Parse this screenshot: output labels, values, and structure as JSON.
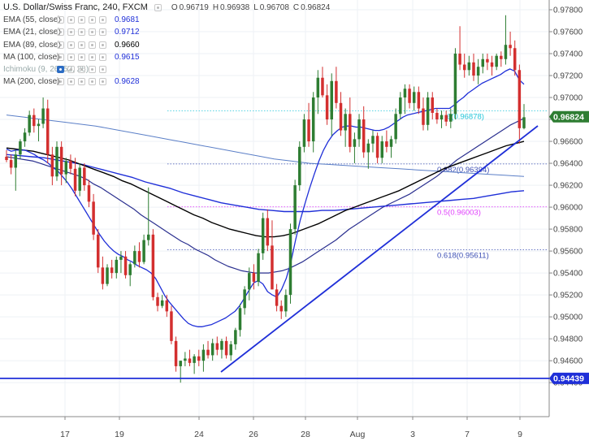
{
  "header": {
    "title": "U.S. Dollar/Swiss Franc, 240, FXCM",
    "ohlc": [
      {
        "k": "O",
        "v": "0.96719"
      },
      {
        "k": "H",
        "v": "0.96938"
      },
      {
        "k": "L",
        "v": "0.96708"
      },
      {
        "k": "C",
        "v": "0.96824"
      }
    ]
  },
  "indicators": [
    {
      "label": "EMA (55, close)",
      "value": "0.9681",
      "color": "#1f2fd8",
      "dim": false,
      "icon": "eye-icon"
    },
    {
      "label": "EMA (21, close)",
      "value": "0.9712",
      "color": "#1f2fd8",
      "dim": false,
      "icon": "eye-icon"
    },
    {
      "label": "EMA (89, close)",
      "value": "0.9660",
      "color": "#000000",
      "dim": false,
      "icon": "eye-icon"
    },
    {
      "label": "MA (100, close)",
      "value": "0.9615",
      "color": "#1f2fd8",
      "dim": false,
      "icon": "eye-icon"
    },
    {
      "label": "Ichimoku (9, 26, 52, 26)",
      "value": "",
      "color": "#999999",
      "dim": true,
      "icon": "eye-toggle-icon"
    },
    {
      "label": "MA (200, close)",
      "value": "0.9628",
      "color": "#1f2fd8",
      "dim": false,
      "icon": "eye-icon"
    }
  ],
  "colors": {
    "up": "#2e7d32",
    "down": "#d32f2f",
    "trendline": "#1f2fd8",
    "support": "#1f2fd8",
    "fib": "#3f51b5",
    "price_badge": "#2e7d32",
    "support_badge": "#1f2fd8"
  },
  "chart_data": {
    "type": "candlestick",
    "x_labels": [
      "17",
      "19",
      "24",
      "26",
      "28",
      "Aug",
      "3",
      "7",
      "9"
    ],
    "y_ticks": [
      "0.97800",
      "0.97600",
      "0.97400",
      "0.97200",
      "0.97000",
      "0.96800",
      "0.96600",
      "0.96400",
      "0.96200",
      "0.96000",
      "0.95800",
      "0.95600",
      "0.95400",
      "0.95200",
      "0.95000",
      "0.94800",
      "0.94600",
      "0.94400"
    ],
    "ylim": [
      0.9428,
      0.9789
    ],
    "current_price": "0.96824",
    "support_price": "0.94439",
    "fib_levels": [
      {
        "label": "6(0.96878)",
        "value": 0.96878,
        "color": "#26c6da"
      },
      {
        "label": "0.382(0.96394)",
        "value": 0.96394,
        "color": "#3f51b5"
      },
      {
        "label": "0.5(0.96003)",
        "value": 0.96003,
        "color": "#e040fb"
      },
      {
        "label": "0.618(0.95611)",
        "value": 0.95611,
        "color": "#3f51b5"
      }
    ],
    "candles": [
      [
        0.9646,
        0.9652,
        0.9641,
        0.9643
      ],
      [
        0.9643,
        0.9648,
        0.963,
        0.9636
      ],
      [
        0.9636,
        0.9652,
        0.9615,
        0.9648
      ],
      [
        0.9648,
        0.9662,
        0.9644,
        0.966
      ],
      [
        0.966,
        0.9672,
        0.9655,
        0.9668
      ],
      [
        0.9668,
        0.9688,
        0.9665,
        0.9684
      ],
      [
        0.9684,
        0.969,
        0.9668,
        0.9674
      ],
      [
        0.9674,
        0.968,
        0.966,
        0.9676
      ],
      [
        0.9676,
        0.97,
        0.9672,
        0.969
      ],
      [
        0.969,
        0.9698,
        0.964,
        0.9648
      ],
      [
        0.9648,
        0.9655,
        0.962,
        0.9628
      ],
      [
        0.9628,
        0.966,
        0.9624,
        0.9655
      ],
      [
        0.9655,
        0.966,
        0.962,
        0.963
      ],
      [
        0.963,
        0.9645,
        0.9622,
        0.9642
      ],
      [
        0.9642,
        0.9648,
        0.963,
        0.9635
      ],
      [
        0.9635,
        0.9645,
        0.961,
        0.9615
      ],
      [
        0.9615,
        0.964,
        0.961,
        0.9636
      ],
      [
        0.9636,
        0.964,
        0.9615,
        0.962
      ],
      [
        0.962,
        0.9625,
        0.96,
        0.9605
      ],
      [
        0.9605,
        0.9612,
        0.957,
        0.9575
      ],
      [
        0.9575,
        0.958,
        0.954,
        0.9545
      ],
      [
        0.9545,
        0.9555,
        0.9525,
        0.953
      ],
      [
        0.953,
        0.9548,
        0.9528,
        0.9545
      ],
      [
        0.9545,
        0.9552,
        0.9535,
        0.954
      ],
      [
        0.954,
        0.9555,
        0.9535,
        0.9552
      ],
      [
        0.9552,
        0.956,
        0.954,
        0.9555
      ],
      [
        0.9555,
        0.956,
        0.9535,
        0.9538
      ],
      [
        0.9538,
        0.955,
        0.9528,
        0.9548
      ],
      [
        0.9548,
        0.9565,
        0.9545,
        0.956
      ],
      [
        0.956,
        0.9568,
        0.9545,
        0.955
      ],
      [
        0.955,
        0.9575,
        0.9548,
        0.957
      ],
      [
        0.957,
        0.9618,
        0.9565,
        0.9575
      ],
      [
        0.9575,
        0.958,
        0.9515,
        0.9518
      ],
      [
        0.9518,
        0.9522,
        0.9505,
        0.951
      ],
      [
        0.951,
        0.952,
        0.9508,
        0.9515
      ],
      [
        0.9515,
        0.952,
        0.95,
        0.9505
      ],
      [
        0.9505,
        0.951,
        0.9475,
        0.9478
      ],
      [
        0.9478,
        0.9482,
        0.945,
        0.9455
      ],
      [
        0.9455,
        0.946,
        0.944,
        0.946
      ],
      [
        0.946,
        0.9468,
        0.9455,
        0.9462
      ],
      [
        0.9462,
        0.947,
        0.9455,
        0.9458
      ],
      [
        0.9458,
        0.9466,
        0.9448,
        0.9464
      ],
      [
        0.9464,
        0.947,
        0.9455,
        0.946
      ],
      [
        0.946,
        0.9475,
        0.945,
        0.947
      ],
      [
        0.947,
        0.9478,
        0.9462,
        0.9465
      ],
      [
        0.9465,
        0.948,
        0.946,
        0.9476
      ],
      [
        0.9476,
        0.9482,
        0.9465,
        0.947
      ],
      [
        0.947,
        0.948,
        0.9462,
        0.9478
      ],
      [
        0.9478,
        0.9482,
        0.9462,
        0.9465
      ],
      [
        0.9465,
        0.9478,
        0.946,
        0.9475
      ],
      [
        0.9475,
        0.949,
        0.947,
        0.9488
      ],
      [
        0.9488,
        0.9512,
        0.9482,
        0.9508
      ],
      [
        0.9508,
        0.9528,
        0.9502,
        0.9525
      ],
      [
        0.9525,
        0.9545,
        0.9515,
        0.954
      ],
      [
        0.954,
        0.9548,
        0.9525,
        0.9532
      ],
      [
        0.9532,
        0.9562,
        0.9528,
        0.9558
      ],
      [
        0.9558,
        0.9595,
        0.9552,
        0.959
      ],
      [
        0.959,
        0.9598,
        0.956,
        0.9565
      ],
      [
        0.9565,
        0.9588,
        0.9525,
        0.9525
      ],
      [
        0.9525,
        0.953,
        0.9505,
        0.951
      ],
      [
        0.951,
        0.9515,
        0.9498,
        0.9505
      ],
      [
        0.9505,
        0.9525,
        0.95,
        0.952
      ],
      [
        0.952,
        0.9585,
        0.9512,
        0.958
      ],
      [
        0.958,
        0.9625,
        0.9575,
        0.962
      ],
      [
        0.962,
        0.966,
        0.9615,
        0.9655
      ],
      [
        0.9655,
        0.9685,
        0.965,
        0.968
      ],
      [
        0.968,
        0.9695,
        0.9655,
        0.966
      ],
      [
        0.966,
        0.9705,
        0.965,
        0.97
      ],
      [
        0.97,
        0.9725,
        0.9685,
        0.9718
      ],
      [
        0.9718,
        0.9728,
        0.97,
        0.9702
      ],
      [
        0.9702,
        0.9712,
        0.9675,
        0.968
      ],
      [
        0.968,
        0.9722,
        0.9665,
        0.9715
      ],
      [
        0.9715,
        0.9728,
        0.969,
        0.9695
      ],
      [
        0.9695,
        0.9705,
        0.9665,
        0.967
      ],
      [
        0.967,
        0.969,
        0.9655,
        0.9685
      ],
      [
        0.9685,
        0.97,
        0.965,
        0.9655
      ],
      [
        0.9655,
        0.9668,
        0.964,
        0.9662
      ],
      [
        0.9662,
        0.9685,
        0.9655,
        0.968
      ],
      [
        0.968,
        0.9692,
        0.9645,
        0.965
      ],
      [
        0.965,
        0.9662,
        0.9635,
        0.9658
      ],
      [
        0.9658,
        0.967,
        0.965,
        0.9665
      ],
      [
        0.9665,
        0.9668,
        0.964,
        0.9645
      ],
      [
        0.9645,
        0.9665,
        0.964,
        0.966
      ],
      [
        0.966,
        0.967,
        0.965,
        0.9655
      ],
      [
        0.9655,
        0.9665,
        0.9645,
        0.9662
      ],
      [
        0.9662,
        0.969,
        0.9658,
        0.9685
      ],
      [
        0.9685,
        0.9705,
        0.968,
        0.97
      ],
      [
        0.97,
        0.9712,
        0.9685,
        0.9708
      ],
      [
        0.9708,
        0.9712,
        0.969,
        0.9695
      ],
      [
        0.9695,
        0.971,
        0.9688,
        0.9705
      ],
      [
        0.9705,
        0.971,
        0.9685,
        0.969
      ],
      [
        0.969,
        0.97,
        0.967,
        0.9675
      ],
      [
        0.9675,
        0.9705,
        0.967,
        0.97
      ],
      [
        0.97,
        0.9705,
        0.968,
        0.9686
      ],
      [
        0.9686,
        0.969,
        0.9676,
        0.968
      ],
      [
        0.968,
        0.9688,
        0.9672,
        0.9684
      ],
      [
        0.9684,
        0.9688,
        0.9674,
        0.9678
      ],
      [
        0.9678,
        0.969,
        0.9672,
        0.9685
      ],
      [
        0.9685,
        0.9745,
        0.968,
        0.974
      ],
      [
        0.974,
        0.9765,
        0.9725,
        0.973
      ],
      [
        0.973,
        0.974,
        0.9718,
        0.9725
      ],
      [
        0.9725,
        0.9738,
        0.972,
        0.9732
      ],
      [
        0.9732,
        0.974,
        0.9715,
        0.972
      ],
      [
        0.972,
        0.9735,
        0.9712,
        0.9728
      ],
      [
        0.9728,
        0.974,
        0.9722,
        0.9735
      ],
      [
        0.9735,
        0.974,
        0.9725,
        0.9732
      ],
      [
        0.9732,
        0.9738,
        0.972,
        0.9728
      ],
      [
        0.9728,
        0.974,
        0.9725,
        0.9738
      ],
      [
        0.9738,
        0.9742,
        0.9728,
        0.9735
      ],
      [
        0.9735,
        0.9775,
        0.973,
        0.9748
      ],
      [
        0.9748,
        0.976,
        0.9738,
        0.9745
      ],
      [
        0.9745,
        0.9752,
        0.972,
        0.9725
      ],
      [
        0.9725,
        0.973,
        0.9658,
        0.9672
      ],
      [
        0.9672,
        0.9694,
        0.9671,
        0.9682
      ]
    ],
    "ema21": [
      0.9653,
      0.9651,
      0.9652,
      0.9652,
      0.9652,
      0.965,
      0.9648,
      0.9645,
      0.9643,
      0.964,
      0.9636,
      0.9633,
      0.9628,
      0.9623,
      0.9617,
      0.961,
      0.9603,
      0.9596,
      0.9589,
      0.9582,
      0.9575,
      0.9569,
      0.9564,
      0.956,
      0.9557,
      0.9555,
      0.9552,
      0.955,
      0.9547,
      0.9545,
      0.9543,
      0.954,
      0.9535,
      0.9527,
      0.9519,
      0.9513,
      0.9508,
      0.9503,
      0.9498,
      0.9494,
      0.9492,
      0.9491,
      0.9491,
      0.9492,
      0.9493,
      0.9495,
      0.9497,
      0.9499,
      0.9502,
      0.9505,
      0.951,
      0.9517,
      0.9524,
      0.9531,
      0.9533,
      0.953,
      0.9523,
      0.952,
      0.9518,
      0.9525,
      0.9535,
      0.955,
      0.957,
      0.9588,
      0.9603,
      0.9617,
      0.963,
      0.9642,
      0.9652,
      0.966,
      0.9666,
      0.967,
      0.9673,
      0.9674,
      0.9674,
      0.9673,
      0.9673,
      0.9672,
      0.9671,
      0.967,
      0.967,
      0.9671,
      0.9673,
      0.9676,
      0.9679,
      0.9682,
      0.9684,
      0.9685,
      0.9686,
      0.9687,
      0.9688,
      0.9689,
      0.969,
      0.969,
      0.969,
      0.969,
      0.9693,
      0.9697,
      0.97,
      0.9704,
      0.9707,
      0.971,
      0.9713,
      0.9715,
      0.9717,
      0.9719,
      0.9721,
      0.9724,
      0.9726,
      0.9724,
      0.9716,
      0.9712
    ],
    "ema55": [
      0.9646,
      0.9645,
      0.9644,
      0.9643,
      0.9642,
      0.964,
      0.9638,
      0.9636,
      0.9634,
      0.9632,
      0.963,
      0.9628,
      0.9625,
      0.9621,
      0.9618,
      0.9614,
      0.961,
      0.9606,
      0.9602,
      0.9598,
      0.9593,
      0.9589,
      0.9585,
      0.9581,
      0.9577,
      0.9573,
      0.9569,
      0.9566,
      0.9562,
      0.9559,
      0.9556,
      0.9552,
      0.9549,
      0.9546,
      0.9544,
      0.9542,
      0.9541,
      0.954,
      0.954,
      0.954,
      0.9541,
      0.9542,
      0.9544,
      0.9547,
      0.955,
      0.9554,
      0.9558,
      0.9562,
      0.9566,
      0.957,
      0.9575,
      0.958,
      0.9584,
      0.9588,
      0.9592,
      0.9596,
      0.96,
      0.9603,
      0.9606,
      0.9609,
      0.9612,
      0.9616,
      0.962,
      0.9624,
      0.9628,
      0.9633,
      0.9638,
      0.9643,
      0.9647,
      0.9651,
      0.9655,
      0.9659,
      0.9663,
      0.9667,
      0.9671,
      0.9675,
      0.9678,
      0.9681
    ],
    "ema89": [
      0.9654,
      0.9653,
      0.9652,
      0.9651,
      0.9649,
      0.9647,
      0.9645,
      0.9643,
      0.964,
      0.9637,
      0.9634,
      0.9631,
      0.9628,
      0.9624,
      0.9621,
      0.9617,
      0.9613,
      0.9609,
      0.9605,
      0.9601,
      0.9597,
      0.9593,
      0.959,
      0.9586,
      0.9583,
      0.958,
      0.9578,
      0.9576,
      0.9574,
      0.9573,
      0.9573,
      0.9574,
      0.9576,
      0.9579,
      0.9582,
      0.9585,
      0.9589,
      0.9593,
      0.9597,
      0.96,
      0.9603,
      0.9606,
      0.9609,
      0.9612,
      0.9615,
      0.9619,
      0.9623,
      0.9627,
      0.9631,
      0.9635,
      0.9638,
      0.9641,
      0.9644,
      0.9647,
      0.965,
      0.9653,
      0.9656,
      0.9658,
      0.966
    ],
    "ma100": [
      0.9648,
      0.9647,
      0.9646,
      0.9645,
      0.9643,
      0.9641,
      0.9639,
      0.9636,
      0.9633,
      0.963,
      0.9627,
      0.9623,
      0.962,
      0.9617,
      0.9613,
      0.961,
      0.9607,
      0.9604,
      0.9602,
      0.96,
      0.9598,
      0.9597,
      0.9596,
      0.9596,
      0.9596,
      0.9597,
      0.9597,
      0.9598,
      0.9599,
      0.96,
      0.9601,
      0.9602,
      0.9603,
      0.9604,
      0.9605,
      0.9606,
      0.9607,
      0.9608,
      0.961,
      0.9612,
      0.9614,
      0.9615
    ],
    "ma200": [
      0.9684,
      0.9682,
      0.968,
      0.9678,
      0.9676,
      0.9674,
      0.9671,
      0.9668,
      0.9665,
      0.9662,
      0.9659,
      0.9656,
      0.9653,
      0.965,
      0.9647,
      0.9644,
      0.9642,
      0.964,
      0.9639,
      0.9638,
      0.9637,
      0.9636,
      0.9635,
      0.9634,
      0.9633,
      0.9632,
      0.9631,
      0.963,
      0.9629,
      0.9628
    ]
  }
}
